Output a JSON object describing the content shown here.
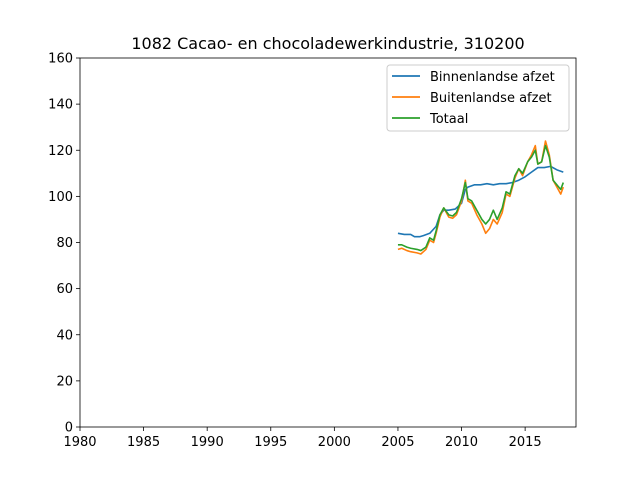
{
  "chart_data": {
    "type": "line",
    "title": "1082 Cacao- en chocoladewerkindustrie, 310200",
    "xlabel": "",
    "ylabel": "",
    "xlim": [
      1980,
      2019
    ],
    "ylim": [
      0,
      160
    ],
    "xticks": [
      1980,
      1985,
      1990,
      1995,
      2000,
      2005,
      2010,
      2015
    ],
    "yticks": [
      0,
      20,
      40,
      60,
      80,
      100,
      120,
      140,
      160
    ],
    "grid": false,
    "legend_position": "top-right",
    "series": [
      {
        "name": "Binnenlandse afzet",
        "color": "#1f77b4",
        "points": [
          [
            2005.0,
            84
          ],
          [
            2005.5,
            83.5
          ],
          [
            2006.0,
            83.5
          ],
          [
            2006.3,
            82.5
          ],
          [
            2006.7,
            82.5
          ],
          [
            2007.0,
            83
          ],
          [
            2007.5,
            84
          ],
          [
            2008.0,
            87
          ],
          [
            2008.3,
            92
          ],
          [
            2008.6,
            94
          ],
          [
            2009.0,
            94
          ],
          [
            2009.5,
            94.5
          ],
          [
            2010.0,
            97
          ],
          [
            2010.3,
            103
          ],
          [
            2010.5,
            104
          ],
          [
            2011.0,
            105
          ],
          [
            2011.5,
            105
          ],
          [
            2012.0,
            105.5
          ],
          [
            2012.5,
            105
          ],
          [
            2013.0,
            105.5
          ],
          [
            2013.5,
            105.5
          ],
          [
            2014.0,
            106
          ],
          [
            2014.5,
            107
          ],
          [
            2015.0,
            108.5
          ],
          [
            2015.5,
            110.5
          ],
          [
            2016.0,
            112.5
          ],
          [
            2016.5,
            112.5
          ],
          [
            2017.0,
            113
          ],
          [
            2017.5,
            111.5
          ],
          [
            2018.0,
            110.5
          ]
        ]
      },
      {
        "name": "Buitenlandse afzet",
        "color": "#ff7f0e",
        "points": [
          [
            2005.0,
            77
          ],
          [
            2005.3,
            77.5
          ],
          [
            2005.7,
            76.5
          ],
          [
            2006.0,
            76
          ],
          [
            2006.5,
            75.5
          ],
          [
            2006.8,
            75
          ],
          [
            2007.2,
            77
          ],
          [
            2007.5,
            81
          ],
          [
            2007.8,
            80
          ],
          [
            2008.0,
            84
          ],
          [
            2008.3,
            91
          ],
          [
            2008.6,
            95
          ],
          [
            2009.0,
            91
          ],
          [
            2009.3,
            90.5
          ],
          [
            2009.6,
            92
          ],
          [
            2010.0,
            98
          ],
          [
            2010.3,
            107
          ],
          [
            2010.5,
            98
          ],
          [
            2010.8,
            97
          ],
          [
            2011.2,
            92
          ],
          [
            2011.6,
            88
          ],
          [
            2011.9,
            84
          ],
          [
            2012.2,
            86
          ],
          [
            2012.5,
            90
          ],
          [
            2012.8,
            88
          ],
          [
            2013.2,
            93
          ],
          [
            2013.5,
            101
          ],
          [
            2013.8,
            100
          ],
          [
            2014.2,
            108
          ],
          [
            2014.5,
            112
          ],
          [
            2014.8,
            109
          ],
          [
            2015.2,
            115
          ],
          [
            2015.5,
            118
          ],
          [
            2015.8,
            122
          ],
          [
            2016.0,
            114
          ],
          [
            2016.3,
            115
          ],
          [
            2016.6,
            124
          ],
          [
            2016.9,
            118
          ],
          [
            2017.2,
            107
          ],
          [
            2017.5,
            104
          ],
          [
            2017.8,
            101
          ],
          [
            2018.0,
            104
          ]
        ]
      },
      {
        "name": "Totaal",
        "color": "#2ca02c",
        "points": [
          [
            2005.0,
            79
          ],
          [
            2005.3,
            79
          ],
          [
            2005.7,
            78
          ],
          [
            2006.0,
            77.5
          ],
          [
            2006.5,
            77
          ],
          [
            2006.8,
            76.5
          ],
          [
            2007.2,
            78
          ],
          [
            2007.5,
            82
          ],
          [
            2007.8,
            81
          ],
          [
            2008.0,
            85
          ],
          [
            2008.3,
            92
          ],
          [
            2008.6,
            95
          ],
          [
            2009.0,
            92
          ],
          [
            2009.3,
            91.5
          ],
          [
            2009.6,
            93
          ],
          [
            2010.0,
            99
          ],
          [
            2010.3,
            106
          ],
          [
            2010.5,
            99
          ],
          [
            2010.8,
            98
          ],
          [
            2011.2,
            94
          ],
          [
            2011.6,
            90
          ],
          [
            2011.9,
            88
          ],
          [
            2012.2,
            90
          ],
          [
            2012.5,
            94
          ],
          [
            2012.8,
            90
          ],
          [
            2013.2,
            95
          ],
          [
            2013.5,
            102
          ],
          [
            2013.8,
            101
          ],
          [
            2014.2,
            109
          ],
          [
            2014.5,
            112
          ],
          [
            2014.8,
            110
          ],
          [
            2015.2,
            115
          ],
          [
            2015.5,
            117
          ],
          [
            2015.8,
            120
          ],
          [
            2016.0,
            114
          ],
          [
            2016.3,
            115
          ],
          [
            2016.6,
            122
          ],
          [
            2016.9,
            117
          ],
          [
            2017.2,
            107
          ],
          [
            2017.5,
            105
          ],
          [
            2017.8,
            103
          ],
          [
            2018.0,
            106
          ]
        ]
      }
    ]
  }
}
